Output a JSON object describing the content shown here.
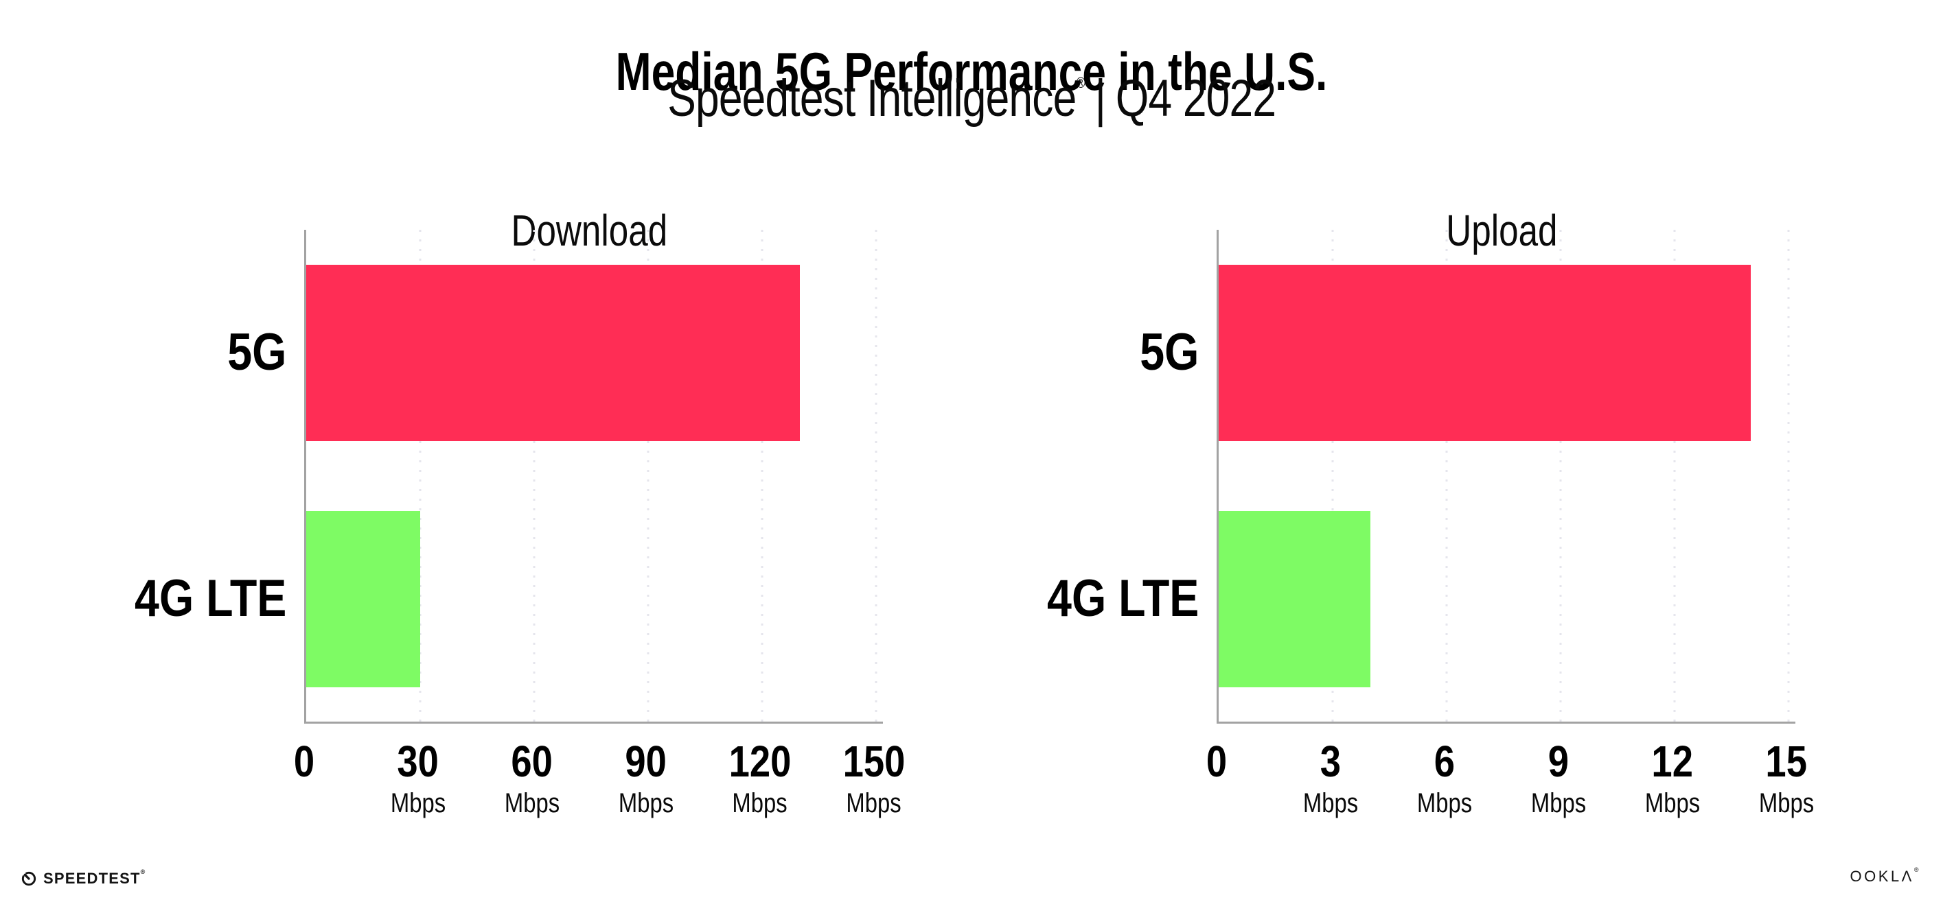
{
  "header": {
    "title": "Median 5G Performance in the U.S.",
    "subtitle_brand": "Speedtest Intelligence",
    "subtitle_reg": "®",
    "subtitle_sep": "|",
    "subtitle_period": "Q4 2022"
  },
  "chart_data": [
    {
      "type": "bar",
      "orientation": "horizontal",
      "title": "Download",
      "categories": [
        "5G",
        "4G LTE"
      ],
      "values": [
        130,
        30
      ],
      "unit": "Mbps",
      "xlim": [
        0,
        150
      ],
      "xticks": [
        0,
        30,
        60,
        90,
        120,
        150
      ],
      "bar_colors": [
        "#FF2D55",
        "#7EFB64"
      ],
      "grid": "dotted-vertical-gridlines",
      "legend": "none"
    },
    {
      "type": "bar",
      "orientation": "horizontal",
      "title": "Upload",
      "categories": [
        "5G",
        "4G LTE"
      ],
      "values": [
        14,
        4
      ],
      "unit": "Mbps",
      "xlim": [
        0,
        15
      ],
      "xticks": [
        0,
        3,
        6,
        9,
        12,
        15
      ],
      "bar_colors": [
        "#FF2D55",
        "#7EFB64"
      ],
      "grid": "dotted-vertical-gridlines",
      "legend": "none"
    }
  ],
  "footer": {
    "speedtest_text": "SPEEDTEST",
    "speedtest_reg": "®",
    "ookla_text": "OOKLΛ",
    "ookla_reg": "®"
  },
  "colors": {
    "bar_5g": "#FF2D55",
    "bar_4g_lte": "#7EFB64",
    "axis": "#a3a3a3",
    "gridline": "#e5e5ec",
    "text": "#000000"
  }
}
